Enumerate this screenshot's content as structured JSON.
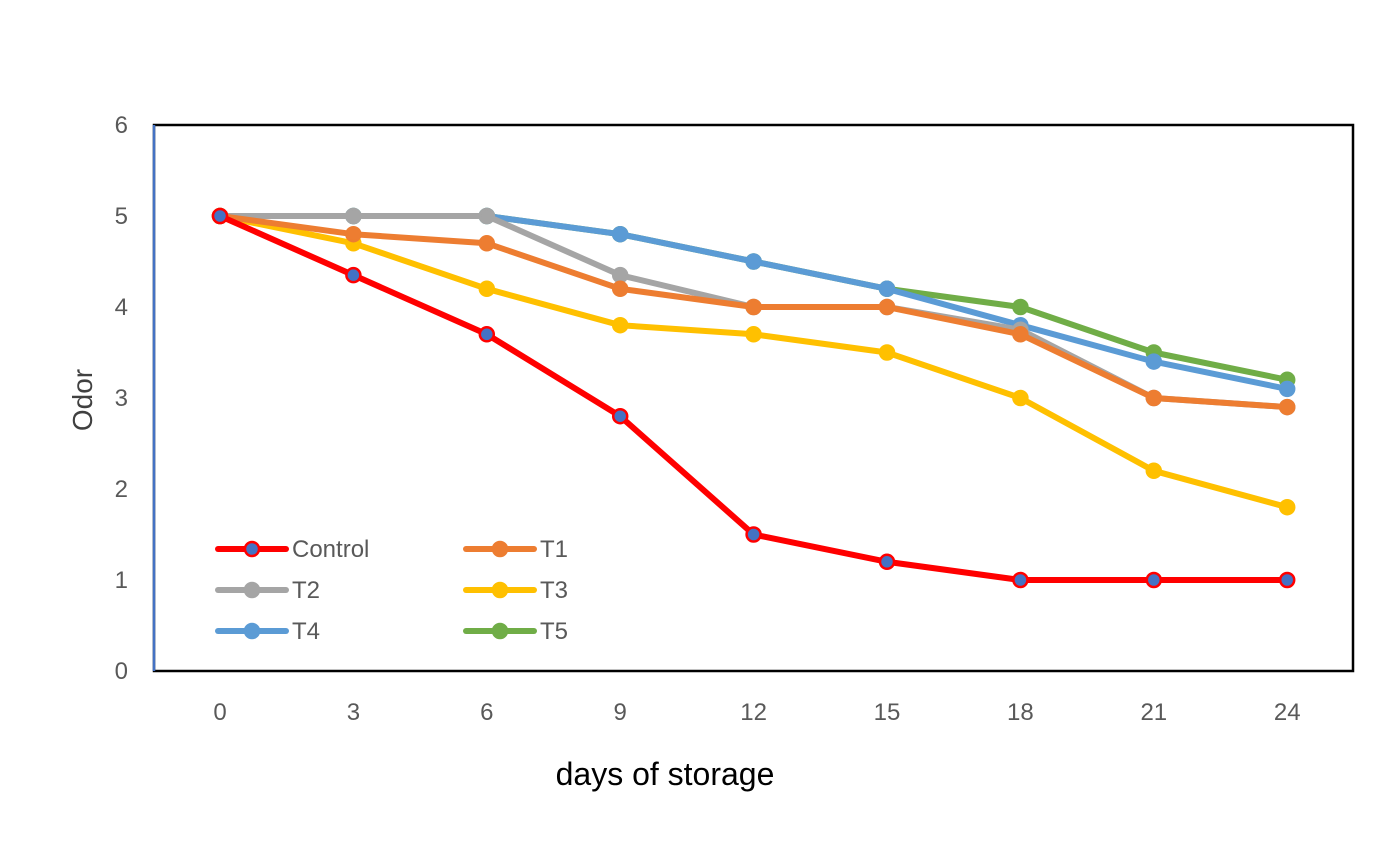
{
  "chart_data": {
    "type": "line",
    "title": "",
    "xlabel": "days of storage",
    "ylabel": "Odor",
    "x": [
      0,
      3,
      6,
      9,
      12,
      15,
      18,
      21,
      24
    ],
    "ylim": [
      0,
      6
    ],
    "yticks": [
      0,
      1,
      2,
      3,
      4,
      5,
      6
    ],
    "grid": false,
    "legend_position": "bottom-left",
    "series": [
      {
        "name": "Control",
        "color": "#ff0000",
        "marker_color": "#4472c4",
        "values": [
          5,
          4.35,
          3.7,
          2.8,
          1.5,
          1.2,
          1.0,
          1.0,
          1.0
        ]
      },
      {
        "name": "T1",
        "color": "#ed7d31",
        "marker_color": "#ed7d31",
        "values": [
          5,
          4.8,
          4.7,
          4.2,
          4.0,
          4.0,
          3.7,
          3.0,
          2.9
        ]
      },
      {
        "name": "T2",
        "color": "#a5a5a5",
        "marker_color": "#a5a5a5",
        "values": [
          5,
          5.0,
          5.0,
          4.35,
          4.0,
          4.0,
          3.75,
          3.0,
          2.9
        ]
      },
      {
        "name": "T3",
        "color": "#ffc000",
        "marker_color": "#ffc000",
        "values": [
          5,
          4.7,
          4.2,
          3.8,
          3.7,
          3.5,
          3.0,
          2.2,
          1.8
        ]
      },
      {
        "name": "T4",
        "color": "#5b9bd5",
        "marker_color": "#5b9bd5",
        "values": [
          5,
          5.0,
          5.0,
          4.8,
          4.5,
          4.2,
          3.8,
          3.4,
          3.1
        ]
      },
      {
        "name": "T5",
        "color": "#70ad47",
        "marker_color": "#70ad47",
        "values": [
          5,
          5.0,
          5.0,
          4.8,
          4.5,
          4.2,
          4.0,
          3.5,
          3.2
        ]
      }
    ]
  }
}
